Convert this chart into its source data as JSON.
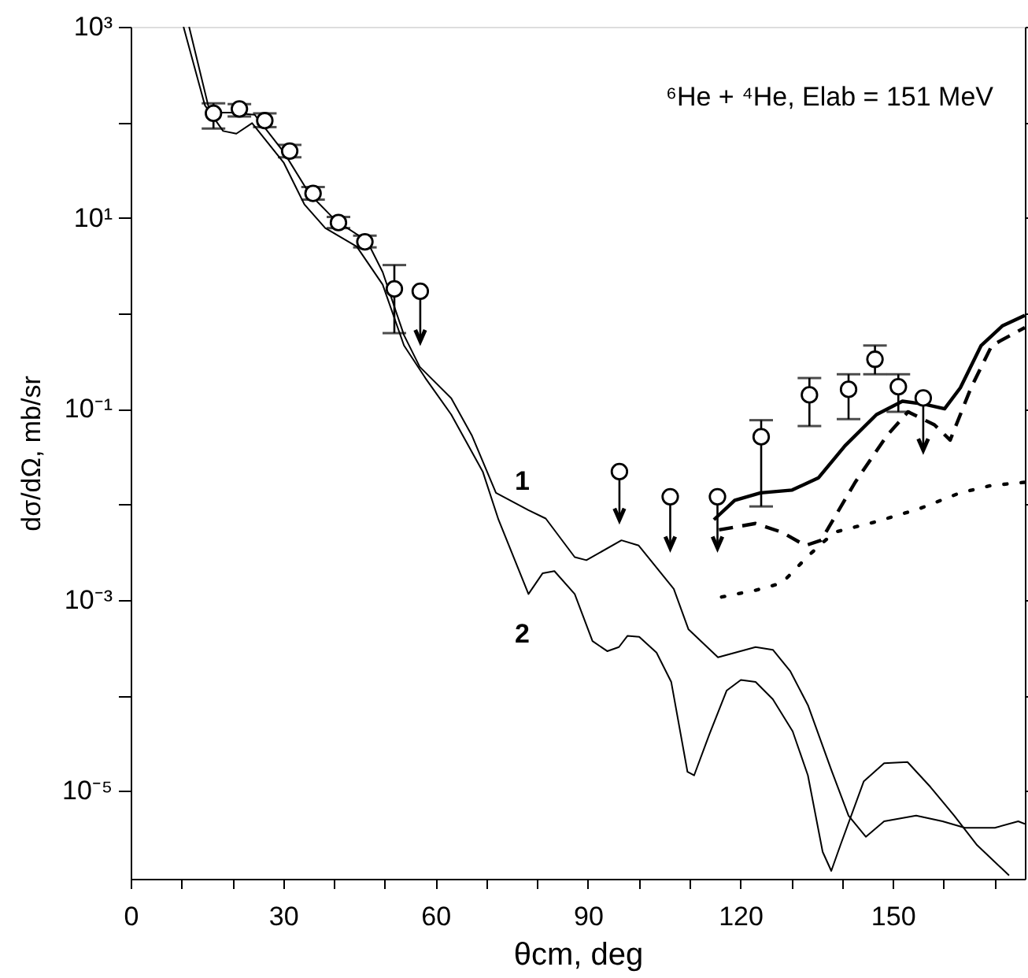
{
  "chart_data": {
    "type": "line",
    "xlabel": "θcm,  deg",
    "ylabel": "dσ/dΩ,  mb/sr",
    "log": "y",
    "grid": false,
    "xlim": [
      0,
      176
    ],
    "ylim": [
      1.2e-06,
      1000
    ],
    "xticks": [
      0,
      {
        "value": 10,
        "label": null
      },
      {
        "value": 20,
        "label": null
      },
      30,
      {
        "value": 40,
        "label": null
      },
      {
        "value": 50,
        "label": null
      },
      60,
      {
        "value": 70,
        "label": null
      },
      {
        "value": 80,
        "label": null
      },
      90,
      {
        "value": 100,
        "label": null
      },
      {
        "value": 110,
        "label": null
      },
      120,
      {
        "value": 130,
        "label": null
      },
      {
        "value": 140,
        "label": null
      },
      150,
      {
        "value": 160,
        "label": null
      },
      {
        "value": 170,
        "label": null
      }
    ],
    "yticks": [
      {
        "value": 1000,
        "label": "10³"
      },
      {
        "value": 100,
        "label": null
      },
      {
        "value": 10,
        "label": "10¹"
      },
      {
        "value": 1,
        "label": null
      },
      {
        "value": 0.1,
        "label": "10⁻¹"
      },
      {
        "value": 0.01,
        "label": null
      },
      {
        "value": 0.001,
        "label": "10⁻³"
      },
      {
        "value": 0.0001,
        "label": null
      },
      {
        "value": 1e-05,
        "label": "10⁻⁵"
      }
    ],
    "annotations": [
      "⁶He + ⁴He,  Elab = 151 MeV"
    ],
    "series": [
      {
        "name": "1",
        "color": "#000000",
        "line_style": "solid",
        "x": [
          11.5,
          15.6,
          19.7,
          24.4,
          30.1,
          35.2,
          40.4,
          46.5,
          49.6,
          53.8,
          56.9,
          63.1,
          67.2,
          71.9,
          78.3,
          81.7,
          87.4,
          89.7,
          96.6,
          100,
          106.9,
          109.8,
          115.6,
          123,
          126.4,
          129.8,
          133.3,
          137.9,
          141.3,
          144.7,
          148.3,
          154.6,
          159.8,
          164.2,
          170.1,
          174.7,
          176
        ],
        "values": [
          1000,
          126,
          126,
          120,
          49,
          17.8,
          9.3,
          5.75,
          2.7,
          0.59,
          0.275,
          0.129,
          0.052,
          0.0132,
          0.0087,
          0.0071,
          0.0028,
          0.0026,
          0.0042,
          0.0037,
          0.0013,
          0.00049,
          0.00025,
          0.00032,
          0.0003,
          0.00018,
          7.9e-05,
          1.66e-05,
          5.5e-06,
          3.3e-06,
          4.8e-06,
          5.5e-06,
          4.8e-06,
          4.1e-06,
          4.1e-06,
          4.8e-06,
          4.5e-06
        ]
      },
      {
        "name": "2",
        "color": "#000000",
        "line_style": "solid",
        "x": [
          10.4,
          14.6,
          18.2,
          20.8,
          23.9,
          30.1,
          34.2,
          38.3,
          44.5,
          49.6,
          53.8,
          58,
          63.1,
          69.3,
          72.4,
          78.3,
          81.1,
          83.4,
          87.4,
          90.9,
          93.8,
          96.1,
          97.8,
          100.1,
          103.5,
          106.4,
          109.6,
          110.9,
          113.9,
          117.3,
          120.1,
          123,
          126.4,
          130.3,
          133.3,
          136.2,
          137.9,
          139.7,
          144.3,
          148.3,
          152.9,
          157.4,
          162.1,
          166.6,
          172.9
        ],
        "values": [
          1000,
          151,
          81,
          76,
          98,
          38,
          13.8,
          7.8,
          5.0,
          2.0,
          0.46,
          0.21,
          0.087,
          0.022,
          0.0069,
          0.00115,
          0.0019,
          0.002,
          0.00115,
          0.00037,
          0.00029,
          0.00032,
          0.00042,
          0.00041,
          0.00028,
          0.000138,
          1.58e-05,
          1.45e-05,
          3.9e-05,
          0.000112,
          0.000145,
          0.000138,
          9.1e-05,
          4.2e-05,
          1.45e-05,
          2.3e-06,
          1.45e-06,
          2.7e-06,
          1.26e-05,
          1.95e-05,
          2e-05,
          1.1e-05,
          5.5e-06,
          2.7e-06,
          1.3e-06
        ]
      },
      {
        "color": "#000000",
        "line_style": "solid",
        "x": [
          114.8,
          118.9,
          124,
          130.2,
          135.4,
          140.6,
          146.8,
          151.9,
          156.1,
          160.2,
          163.3,
          167.4,
          171.6,
          176
        ],
        "values": [
          0.0069,
          0.011,
          0.0132,
          0.0141,
          0.019,
          0.041,
          0.087,
          0.12,
          0.112,
          0.1,
          0.166,
          0.46,
          0.74,
          0.95
        ]
      },
      {
        "color": "#000000",
        "line_style": "dashed",
        "x": [
          115.8,
          123,
          128.2,
          132.8,
          135.9,
          142.6,
          148.8,
          153,
          158.2,
          161.3,
          165.4,
          169.5,
          176
        ],
        "values": [
          0.0054,
          0.0063,
          0.0051,
          0.0037,
          0.0042,
          0.017,
          0.052,
          0.093,
          0.068,
          0.047,
          0.166,
          0.46,
          0.71
        ]
      },
      {
        "color": "#000000",
        "line_style": "dotted",
        "x": [
          116.3,
          123,
          128.2,
          133.4,
          138.5,
          146.8,
          155,
          163.3,
          169.5,
          176
        ],
        "values": [
          0.00107,
          0.00126,
          0.0015,
          0.0029,
          0.0051,
          0.0066,
          0.0089,
          0.0132,
          0.0158,
          0.017
        ]
      },
      {
        "type": "scatter",
        "marker": "circle",
        "color": "#000000",
        "x": [
          16.3,
          21.4,
          26.4,
          31.3,
          35.9,
          40.9,
          46.1,
          51.9,
          57.0,
          96.2,
          106.2,
          115.5,
          124.1,
          133.6,
          141.3,
          146.5,
          151.1,
          156
        ],
        "values": [
          124,
          138,
          104,
          50,
          18,
          8.9,
          5.6,
          1.8,
          1.7,
          0.022,
          0.012,
          0.012,
          0.051,
          0.14,
          0.16,
          0.33,
          0.17,
          0.13
        ],
        "errors": [
          [
            86,
            158
          ],
          [
            115,
            155
          ],
          [
            89,
            124
          ],
          [
            43,
            58
          ],
          [
            15.5,
            21
          ],
          [
            7.8,
            10.2
          ],
          [
            4.9,
            6.5
          ],
          [
            0.62,
            3.2
          ],
          [
            0.51,
            1.7
          ],
          [
            0.0069,
            0.022
          ],
          [
            0.0035,
            0.012
          ],
          [
            0.0035,
            0.012
          ],
          [
            0.0095,
            0.076
          ],
          [
            0.066,
            0.21
          ],
          [
            0.078,
            0.23
          ],
          [
            0.23,
            0.46
          ],
          [
            0.093,
            0.23
          ],
          [
            0.037,
            0.13
          ]
        ]
      }
    ]
  }
}
